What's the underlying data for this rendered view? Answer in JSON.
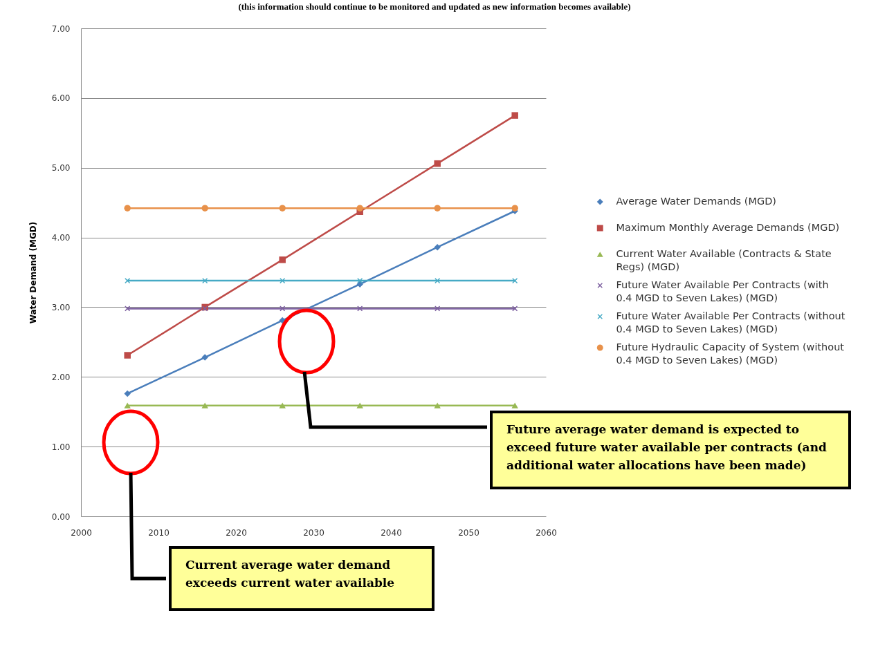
{
  "chart_data": {
    "type": "line",
    "title": "(this information should continue to be monitored and updated as new information becomes available)",
    "ylabel": "Water Demand (MGD)",
    "x": [
      2006,
      2016,
      2026,
      2036,
      2046,
      2056
    ],
    "series": [
      {
        "name": "Average Water Demands (MGD)",
        "color": "#4a7ebb",
        "marker": "diamond",
        "values": [
          1.76,
          2.28,
          2.81,
          3.33,
          3.86,
          4.38
        ]
      },
      {
        "name": "Maximum Monthly Average Demands (MGD)",
        "color": "#be4b48",
        "marker": "square",
        "values": [
          2.31,
          3.0,
          3.68,
          4.37,
          5.06,
          5.75
        ]
      },
      {
        "name": "Current Water Available (Contracts & State Regs) (MGD)",
        "color": "#98b954",
        "marker": "triangle",
        "values": [
          1.59,
          1.59,
          1.59,
          1.59,
          1.59,
          1.59
        ]
      },
      {
        "name": "Future Water Available Per Contracts (with 0.4 MGD to Seven Lakes) (MGD)",
        "color": "#7d60a0",
        "marker": "cross",
        "values": [
          2.98,
          2.98,
          2.98,
          2.98,
          2.98,
          2.98
        ]
      },
      {
        "name": "Future Water Available Per Contracts (without 0.4 MGD to Seven Lakes) (MGD)",
        "color": "#46aac5",
        "marker": "cross",
        "values": [
          3.38,
          3.38,
          3.38,
          3.38,
          3.38,
          3.38
        ]
      },
      {
        "name": "Future Hydraulic Capacity of System (without 0.4 MGD to Seven Lakes) (MGD)",
        "color": "#e8914a",
        "marker": "circle",
        "values": [
          4.42,
          4.42,
          4.42,
          4.42,
          4.42,
          4.42
        ]
      }
    ],
    "xlim": [
      2000,
      2060
    ],
    "xticks": [
      2000,
      2010,
      2020,
      2030,
      2040,
      2050,
      2060
    ],
    "ylim": [
      0,
      7
    ],
    "yticks": [
      {
        "value": 0,
        "label": "0.00"
      },
      {
        "value": 1,
        "label": "1.00"
      },
      {
        "value": 2,
        "label": "2.00"
      },
      {
        "value": 3,
        "label": "3.00"
      },
      {
        "value": 4,
        "label": "4.00"
      },
      {
        "value": 5,
        "label": "5.00"
      },
      {
        "value": 6,
        "label": "6.00"
      },
      {
        "value": 7,
        "label": "7.00"
      }
    ],
    "grid": "y",
    "legend": "right",
    "annotations": [
      "Current average water demand exceeds current water available",
      "Future average water demand is expected to exceed future water available per contracts (and additional water allocations have been made)"
    ]
  }
}
